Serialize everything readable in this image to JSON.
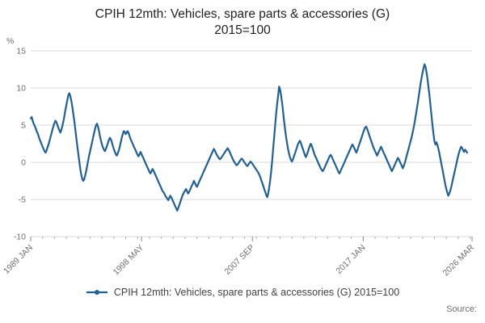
{
  "title_line1": "CPIH 12mth: Vehicles, spare parts & accessories (G)",
  "title_line2": "2015=100",
  "y_unit_label": "%",
  "source_label": "Source:",
  "legend": {
    "label": "CPIH 12mth: Vehicles, spare parts & accessories (G) 2015=100"
  },
  "colors": {
    "line": "#206095",
    "grid": "#d9d9d9",
    "axis": "#b0b0b0",
    "tick_text": "#6e6e6e",
    "title_text": "#222222"
  },
  "chart_data": {
    "type": "line",
    "title": "CPIH 12mth: Vehicles, spare parts & accessories (G) 2015=100",
    "xlabel": "",
    "ylabel": "%",
    "ylim": [
      -10,
      15
    ],
    "yticks": [
      -10,
      -5,
      0,
      5,
      10,
      15
    ],
    "grid": "horizontal",
    "legend_position": "bottom",
    "x_start": "1989-01",
    "x_end": "2026-03",
    "x_total_months": 447,
    "x_tick_positions": [
      0,
      112,
      224,
      336,
      446
    ],
    "x_tick_labels": [
      "1989 JAN",
      "1998 MAY",
      "2007 SEP",
      "2017 JAN",
      "2026 MAR"
    ],
    "series": [
      {
        "name": "CPIH 12mth: Vehicles, spare parts & accessories (G) 2015=100",
        "frequency": "monthly",
        "start": "1989-01",
        "values": [
          5.9,
          6.1,
          5.6,
          5.2,
          4.9,
          4.6,
          4.2,
          3.9,
          3.5,
          3.1,
          2.8,
          2.4,
          2.1,
          1.8,
          1.5,
          1.3,
          1.6,
          2.0,
          2.4,
          2.9,
          3.4,
          3.9,
          4.4,
          4.9,
          5.3,
          5.6,
          5.4,
          5.0,
          4.6,
          4.3,
          4.0,
          4.4,
          4.9,
          5.5,
          6.2,
          7.0,
          7.7,
          8.4,
          9.0,
          9.3,
          8.9,
          8.3,
          7.5,
          6.6,
          5.6,
          4.5,
          3.4,
          2.3,
          1.2,
          0.2,
          -0.8,
          -1.6,
          -2.2,
          -2.5,
          -2.3,
          -1.8,
          -1.2,
          -0.5,
          0.2,
          0.9,
          1.5,
          2.1,
          2.7,
          3.3,
          3.9,
          4.5,
          5.0,
          5.2,
          4.8,
          4.2,
          3.5,
          2.9,
          2.4,
          2.0,
          1.7,
          1.5,
          1.8,
          2.2,
          2.6,
          3.0,
          3.3,
          3.1,
          2.7,
          2.2,
          1.8,
          1.4,
          1.1,
          0.9,
          1.2,
          1.6,
          2.1,
          2.7,
          3.3,
          3.8,
          4.2,
          4.1,
          3.8,
          4.0,
          4.2,
          3.9,
          3.5,
          3.1,
          2.8,
          2.5,
          2.2,
          1.9,
          1.6,
          1.3,
          1.0,
          0.8,
          1.1,
          1.4,
          1.1,
          0.8,
          0.5,
          0.2,
          -0.1,
          -0.4,
          -0.7,
          -1.0,
          -1.3,
          -1.5,
          -1.2,
          -0.9,
          -1.1,
          -1.4,
          -1.7,
          -2.0,
          -2.3,
          -2.6,
          -2.9,
          -3.2,
          -3.5,
          -3.8,
          -4.0,
          -4.2,
          -4.5,
          -4.7,
          -4.9,
          -5.1,
          -4.8,
          -4.5,
          -4.7,
          -5.0,
          -5.3,
          -5.6,
          -5.9,
          -6.2,
          -6.5,
          -6.2,
          -5.8,
          -5.4,
          -5.0,
          -4.6,
          -4.3,
          -4.0,
          -3.8,
          -3.6,
          -3.9,
          -4.2,
          -4.0,
          -3.7,
          -3.4,
          -3.1,
          -2.8,
          -2.5,
          -2.8,
          -3.1,
          -3.3,
          -3.0,
          -2.7,
          -2.4,
          -2.1,
          -1.8,
          -1.5,
          -1.2,
          -0.9,
          -0.6,
          -0.3,
          0.0,
          0.3,
          0.6,
          0.9,
          1.2,
          1.5,
          1.8,
          1.6,
          1.3,
          1.0,
          0.8,
          0.6,
          0.4,
          0.5,
          0.7,
          0.9,
          1.1,
          1.3,
          1.5,
          1.7,
          1.9,
          1.7,
          1.4,
          1.1,
          0.8,
          0.5,
          0.2,
          0.0,
          -0.2,
          -0.4,
          -0.3,
          -0.1,
          0.1,
          0.3,
          0.5,
          0.4,
          0.2,
          0.0,
          -0.2,
          -0.4,
          -0.5,
          -0.3,
          -0.1,
          0.1,
          0.0,
          -0.2,
          -0.4,
          -0.6,
          -0.8,
          -1.0,
          -1.2,
          -1.4,
          -1.7,
          -2.0,
          -2.4,
          -2.8,
          -3.2,
          -3.6,
          -4.0,
          -4.4,
          -4.7,
          -4.2,
          -3.4,
          -2.4,
          -1.2,
          0.2,
          1.8,
          3.4,
          5.0,
          6.5,
          7.8,
          9.0,
          10.2,
          9.8,
          9.0,
          8.0,
          6.8,
          5.6,
          4.5,
          3.5,
          2.6,
          1.8,
          1.2,
          0.7,
          0.3,
          0.1,
          0.4,
          0.8,
          1.2,
          1.6,
          2.0,
          2.4,
          2.7,
          2.9,
          2.6,
          2.2,
          1.8,
          1.4,
          1.0,
          0.7,
          1.0,
          1.4,
          1.8,
          2.2,
          2.5,
          2.2,
          1.8,
          1.4,
          1.0,
          0.7,
          0.4,
          0.1,
          -0.2,
          -0.5,
          -0.8,
          -1.0,
          -1.2,
          -1.0,
          -0.7,
          -0.4,
          -0.1,
          0.2,
          0.5,
          0.8,
          1.0,
          0.8,
          0.5,
          0.2,
          -0.1,
          -0.4,
          -0.7,
          -1.0,
          -1.3,
          -1.5,
          -1.2,
          -0.9,
          -0.6,
          -0.3,
          0.0,
          0.3,
          0.6,
          0.9,
          1.2,
          1.5,
          1.8,
          2.1,
          2.4,
          2.2,
          1.9,
          1.6,
          1.3,
          1.6,
          2.0,
          2.4,
          2.8,
          3.2,
          3.6,
          4.0,
          4.4,
          4.7,
          4.8,
          4.5,
          4.1,
          3.7,
          3.3,
          2.9,
          2.5,
          2.1,
          1.8,
          1.5,
          1.2,
          0.9,
          1.2,
          1.5,
          1.8,
          2.1,
          1.8,
          1.5,
          1.2,
          0.9,
          0.6,
          0.3,
          0.0,
          -0.3,
          -0.6,
          -0.9,
          -1.2,
          -0.9,
          -0.6,
          -0.3,
          0.0,
          0.3,
          0.6,
          0.4,
          0.1,
          -0.2,
          -0.5,
          -0.8,
          -0.5,
          -0.1,
          0.4,
          0.9,
          1.4,
          1.9,
          2.4,
          2.9,
          3.4,
          4.0,
          4.7,
          5.4,
          6.2,
          7.0,
          7.9,
          8.8,
          9.7,
          10.6,
          11.4,
          12.1,
          12.7,
          13.2,
          12.8,
          12.1,
          11.2,
          10.1,
          8.9,
          7.6,
          6.3,
          5.0,
          3.8,
          2.8,
          2.4,
          2.7,
          2.3,
          1.8,
          1.2,
          0.5,
          -0.2,
          -0.9,
          -1.6,
          -2.3,
          -3.0,
          -3.6,
          -4.1,
          -4.5,
          -4.2,
          -3.8,
          -3.3,
          -2.7,
          -2.1,
          -1.5,
          -0.9,
          -0.3,
          0.3,
          0.9,
          1.4,
          1.8,
          2.1,
          1.9,
          1.6,
          1.4,
          1.7,
          1.5,
          1.3
        ]
      }
    ]
  }
}
